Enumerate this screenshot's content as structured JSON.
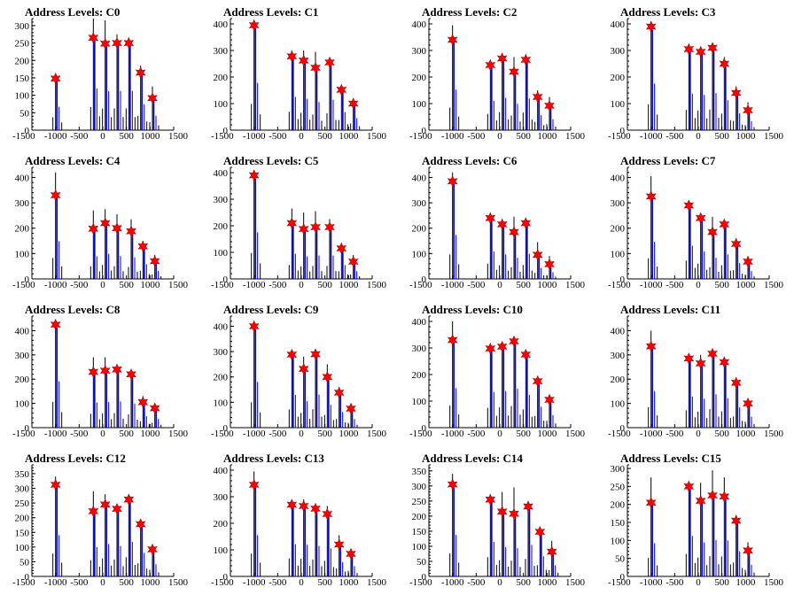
{
  "chart_data": [
    {
      "type": "histogram",
      "title": "Address Levels: C0",
      "xlim": [
        -1500,
        1500
      ],
      "xticks": [
        -1500,
        -1000,
        -500,
        0,
        500,
        1000,
        1500
      ],
      "ylim": [
        0,
        320
      ],
      "yticks": [
        0,
        50,
        100,
        150,
        200,
        250,
        300
      ],
      "peaks": [
        {
          "x": -1000,
          "y": 148,
          "spike": 160
        },
        {
          "x": -200,
          "y": 265,
          "spike": 320
        },
        {
          "x": 50,
          "y": 248,
          "spike": 315
        },
        {
          "x": 300,
          "y": 250,
          "spike": 275
        },
        {
          "x": 550,
          "y": 250,
          "spike": 265
        },
        {
          "x": 800,
          "y": 165,
          "spike": 185
        },
        {
          "x": 1050,
          "y": 92,
          "spike": 125
        }
      ]
    },
    {
      "type": "histogram",
      "title": "Address Levels: C1",
      "xlim": [
        -1500,
        1500
      ],
      "xticks": [
        -1500,
        -1000,
        -500,
        0,
        500,
        1000,
        1500
      ],
      "ylim": [
        0,
        420
      ],
      "yticks": [
        0,
        100,
        200,
        300,
        400
      ],
      "peaks": [
        {
          "x": -1000,
          "y": 395,
          "spike": 410
        },
        {
          "x": -200,
          "y": 278,
          "spike": 300
        },
        {
          "x": 50,
          "y": 262,
          "spike": 300
        },
        {
          "x": 300,
          "y": 235,
          "spike": 295
        },
        {
          "x": 600,
          "y": 255,
          "spike": 275
        },
        {
          "x": 850,
          "y": 152,
          "spike": 165
        },
        {
          "x": 1100,
          "y": 100,
          "spike": 115
        }
      ]
    },
    {
      "type": "histogram",
      "title": "Address Levels: C2",
      "xlim": [
        -1500,
        1500
      ],
      "xticks": [
        -1500,
        -1000,
        -500,
        0,
        500,
        1000,
        1500
      ],
      "ylim": [
        0,
        420
      ],
      "yticks": [
        0,
        100,
        200,
        300,
        400
      ],
      "peaks": [
        {
          "x": -1000,
          "y": 340,
          "spike": 395
        },
        {
          "x": -200,
          "y": 245,
          "spike": 265
        },
        {
          "x": 50,
          "y": 270,
          "spike": 285
        },
        {
          "x": 300,
          "y": 220,
          "spike": 275
        },
        {
          "x": 550,
          "y": 265,
          "spike": 275
        },
        {
          "x": 800,
          "y": 125,
          "spike": 150
        },
        {
          "x": 1050,
          "y": 92,
          "spike": 125
        }
      ]
    },
    {
      "type": "histogram",
      "title": "Address Levels: C3",
      "xlim": [
        -1500,
        1500
      ],
      "xticks": [
        -1500,
        -1000,
        -500,
        0,
        500,
        1000,
        1500
      ],
      "ylim": [
        0,
        420
      ],
      "yticks": [
        0,
        100,
        200,
        300,
        400
      ],
      "peaks": [
        {
          "x": -1000,
          "y": 390,
          "spike": 405
        },
        {
          "x": -200,
          "y": 305,
          "spike": 325
        },
        {
          "x": 50,
          "y": 295,
          "spike": 305
        },
        {
          "x": 300,
          "y": 310,
          "spike": 320
        },
        {
          "x": 550,
          "y": 250,
          "spike": 275
        },
        {
          "x": 800,
          "y": 140,
          "spike": 165
        },
        {
          "x": 1050,
          "y": 75,
          "spike": 105
        }
      ]
    },
    {
      "type": "histogram",
      "title": "Address Levels: C4",
      "xlim": [
        -1500,
        1500
      ],
      "xticks": [
        -1500,
        -1000,
        -500,
        0,
        500,
        1000,
        1500
      ],
      "ylim": [
        0,
        440
      ],
      "yticks": [
        0,
        100,
        200,
        300,
        400
      ],
      "peaks": [
        {
          "x": -1000,
          "y": 330,
          "spike": 420
        },
        {
          "x": -200,
          "y": 198,
          "spike": 270
        },
        {
          "x": 50,
          "y": 220,
          "spike": 275
        },
        {
          "x": 300,
          "y": 200,
          "spike": 255
        },
        {
          "x": 600,
          "y": 188,
          "spike": 235
        },
        {
          "x": 850,
          "y": 128,
          "spike": 150
        },
        {
          "x": 1100,
          "y": 70,
          "spike": 95
        }
      ]
    },
    {
      "type": "histogram",
      "title": "Address Levels: C5",
      "xlim": [
        -1500,
        1500
      ],
      "xticks": [
        -1500,
        -1000,
        -500,
        0,
        500,
        1000,
        1500
      ],
      "ylim": [
        0,
        420
      ],
      "yticks": [
        0,
        100,
        200,
        300,
        400
      ],
      "peaks": [
        {
          "x": -1000,
          "y": 390,
          "spike": 405
        },
        {
          "x": -200,
          "y": 210,
          "spike": 265
        },
        {
          "x": 50,
          "y": 188,
          "spike": 250
        },
        {
          "x": 300,
          "y": 195,
          "spike": 255
        },
        {
          "x": 600,
          "y": 195,
          "spike": 225
        },
        {
          "x": 850,
          "y": 115,
          "spike": 135
        },
        {
          "x": 1100,
          "y": 65,
          "spike": 90
        }
      ]
    },
    {
      "type": "histogram",
      "title": "Address Levels: C6",
      "xlim": [
        -1500,
        1500
      ],
      "xticks": [
        -1500,
        -1000,
        -500,
        0,
        500,
        1000,
        1500
      ],
      "ylim": [
        0,
        440
      ],
      "yticks": [
        0,
        100,
        200,
        300,
        400
      ],
      "peaks": [
        {
          "x": -1000,
          "y": 385,
          "spike": 420
        },
        {
          "x": -200,
          "y": 240,
          "spike": 260
        },
        {
          "x": 50,
          "y": 215,
          "spike": 230
        },
        {
          "x": 300,
          "y": 185,
          "spike": 245
        },
        {
          "x": 550,
          "y": 220,
          "spike": 240
        },
        {
          "x": 800,
          "y": 95,
          "spike": 145
        },
        {
          "x": 1050,
          "y": 58,
          "spike": 90
        }
      ]
    },
    {
      "type": "histogram",
      "title": "Address Levels: C7",
      "xlim": [
        -1500,
        1500
      ],
      "xticks": [
        -1500,
        -1000,
        -500,
        0,
        500,
        1000,
        1500
      ],
      "ylim": [
        0,
        440
      ],
      "yticks": [
        0,
        100,
        200,
        300,
        400
      ],
      "peaks": [
        {
          "x": -1000,
          "y": 325,
          "spike": 405
        },
        {
          "x": -200,
          "y": 290,
          "spike": 300
        },
        {
          "x": 50,
          "y": 240,
          "spike": 255
        },
        {
          "x": 300,
          "y": 185,
          "spike": 245
        },
        {
          "x": 550,
          "y": 215,
          "spike": 230
        },
        {
          "x": 800,
          "y": 138,
          "spike": 160
        },
        {
          "x": 1050,
          "y": 68,
          "spike": 90
        }
      ]
    },
    {
      "type": "histogram",
      "title": "Address Levels: C8",
      "xlim": [
        -1500,
        1500
      ],
      "xticks": [
        -1500,
        -1000,
        -500,
        0,
        500,
        1000,
        1500
      ],
      "ylim": [
        0,
        460
      ],
      "yticks": [
        0,
        100,
        200,
        300,
        400
      ],
      "peaks": [
        {
          "x": -1000,
          "y": 425,
          "spike": 435
        },
        {
          "x": -200,
          "y": 230,
          "spike": 290
        },
        {
          "x": 50,
          "y": 235,
          "spike": 290
        },
        {
          "x": 300,
          "y": 240,
          "spike": 250
        },
        {
          "x": 600,
          "y": 220,
          "spike": 240
        },
        {
          "x": 850,
          "y": 105,
          "spike": 130
        },
        {
          "x": 1100,
          "y": 80,
          "spike": 90
        }
      ]
    },
    {
      "type": "histogram",
      "title": "Address Levels: C9",
      "xlim": [
        -1500,
        1500
      ],
      "xticks": [
        -1500,
        -1000,
        -500,
        0,
        500,
        1000,
        1500
      ],
      "ylim": [
        0,
        440
      ],
      "yticks": [
        0,
        100,
        200,
        300,
        400
      ],
      "peaks": [
        {
          "x": -1000,
          "y": 400,
          "spike": 420
        },
        {
          "x": -200,
          "y": 288,
          "spike": 300
        },
        {
          "x": 50,
          "y": 232,
          "spike": 280
        },
        {
          "x": 300,
          "y": 290,
          "spike": 300
        },
        {
          "x": 550,
          "y": 200,
          "spike": 250
        },
        {
          "x": 800,
          "y": 138,
          "spike": 160
        },
        {
          "x": 1050,
          "y": 75,
          "spike": 90
        }
      ]
    },
    {
      "type": "histogram",
      "title": "Address Levels: C10",
      "xlim": [
        -1500,
        1500
      ],
      "xticks": [
        -1500,
        -1000,
        -500,
        0,
        500,
        1000,
        1500
      ],
      "ylim": [
        0,
        420
      ],
      "yticks": [
        0,
        100,
        200,
        300,
        400
      ],
      "peaks": [
        {
          "x": -1000,
          "y": 330,
          "spike": 400
        },
        {
          "x": -200,
          "y": 298,
          "spike": 310
        },
        {
          "x": 50,
          "y": 305,
          "spike": 320
        },
        {
          "x": 300,
          "y": 325,
          "spike": 335
        },
        {
          "x": 550,
          "y": 275,
          "spike": 290
        },
        {
          "x": 800,
          "y": 175,
          "spike": 185
        },
        {
          "x": 1050,
          "y": 105,
          "spike": 115
        }
      ]
    },
    {
      "type": "histogram",
      "title": "Address Levels: C11",
      "xlim": [
        -1500,
        1500
      ],
      "xticks": [
        -1500,
        -1000,
        -500,
        0,
        500,
        1000,
        1500
      ],
      "ylim": [
        0,
        460
      ],
      "yticks": [
        0,
        100,
        200,
        300,
        400
      ],
      "peaks": [
        {
          "x": -1000,
          "y": 335,
          "spike": 400
        },
        {
          "x": -200,
          "y": 285,
          "spike": 295
        },
        {
          "x": 50,
          "y": 265,
          "spike": 300
        },
        {
          "x": 300,
          "y": 305,
          "spike": 320
        },
        {
          "x": 550,
          "y": 270,
          "spike": 285
        },
        {
          "x": 800,
          "y": 185,
          "spike": 200
        },
        {
          "x": 1050,
          "y": 100,
          "spike": 110
        }
      ]
    },
    {
      "type": "histogram",
      "title": "Address Levels: C12",
      "xlim": [
        -1500,
        1500
      ],
      "xticks": [
        -1500,
        -1000,
        -500,
        0,
        500,
        1000,
        1500
      ],
      "ylim": [
        0,
        380
      ],
      "yticks": [
        0,
        50,
        100,
        150,
        200,
        250,
        300,
        350
      ],
      "peaks": [
        {
          "x": -1000,
          "y": 312,
          "spike": 340
        },
        {
          "x": -200,
          "y": 222,
          "spike": 290
        },
        {
          "x": 50,
          "y": 245,
          "spike": 280
        },
        {
          "x": 300,
          "y": 230,
          "spike": 245
        },
        {
          "x": 550,
          "y": 262,
          "spike": 270
        },
        {
          "x": 800,
          "y": 178,
          "spike": 185
        },
        {
          "x": 1050,
          "y": 92,
          "spike": 110
        }
      ]
    },
    {
      "type": "histogram",
      "title": "Address Levels: C13",
      "xlim": [
        -1500,
        1500
      ],
      "xticks": [
        -1500,
        -1000,
        -500,
        0,
        500,
        1000,
        1500
      ],
      "ylim": [
        0,
        420
      ],
      "yticks": [
        0,
        100,
        200,
        300,
        400
      ],
      "peaks": [
        {
          "x": -1000,
          "y": 345,
          "spike": 395
        },
        {
          "x": -200,
          "y": 270,
          "spike": 280
        },
        {
          "x": 50,
          "y": 265,
          "spike": 290
        },
        {
          "x": 300,
          "y": 255,
          "spike": 270
        },
        {
          "x": 550,
          "y": 235,
          "spike": 265
        },
        {
          "x": 800,
          "y": 120,
          "spike": 155
        },
        {
          "x": 1050,
          "y": 85,
          "spike": 95
        }
      ]
    },
    {
      "type": "histogram",
      "title": "Address Levels: C14",
      "xlim": [
        -1500,
        1500
      ],
      "xticks": [
        -1500,
        -1000,
        -500,
        0,
        500,
        1000,
        1500
      ],
      "ylim": [
        0,
        370
      ],
      "yticks": [
        0,
        50,
        100,
        150,
        200,
        250,
        300,
        350
      ],
      "peaks": [
        {
          "x": -1000,
          "y": 305,
          "spike": 340
        },
        {
          "x": -200,
          "y": 255,
          "spike": 265
        },
        {
          "x": 50,
          "y": 215,
          "spike": 280
        },
        {
          "x": 300,
          "y": 208,
          "spike": 295
        },
        {
          "x": 600,
          "y": 232,
          "spike": 250
        },
        {
          "x": 850,
          "y": 148,
          "spike": 155
        },
        {
          "x": 1100,
          "y": 82,
          "spike": 118
        }
      ]
    },
    {
      "type": "histogram",
      "title": "Address Levels: C15",
      "xlim": [
        -1500,
        1500
      ],
      "xticks": [
        -1500,
        -1000,
        -500,
        0,
        500,
        1000,
        1500
      ],
      "ylim": [
        0,
        310
      ],
      "yticks": [
        0,
        50,
        100,
        150,
        200,
        250,
        300
      ],
      "peaks": [
        {
          "x": -1000,
          "y": 205,
          "spike": 275
        },
        {
          "x": -200,
          "y": 250,
          "spike": 262
        },
        {
          "x": 50,
          "y": 210,
          "spike": 260
        },
        {
          "x": 300,
          "y": 225,
          "spike": 295
        },
        {
          "x": 550,
          "y": 222,
          "spike": 275
        },
        {
          "x": 800,
          "y": 155,
          "spike": 170
        },
        {
          "x": 1050,
          "y": 72,
          "spike": 95
        }
      ]
    }
  ],
  "colors": {
    "bar_blue": "#0000dd",
    "bar_black": "#000000",
    "marker_red": "#ff0000",
    "marker_edge": "#aa0000",
    "axis": "#000000"
  }
}
